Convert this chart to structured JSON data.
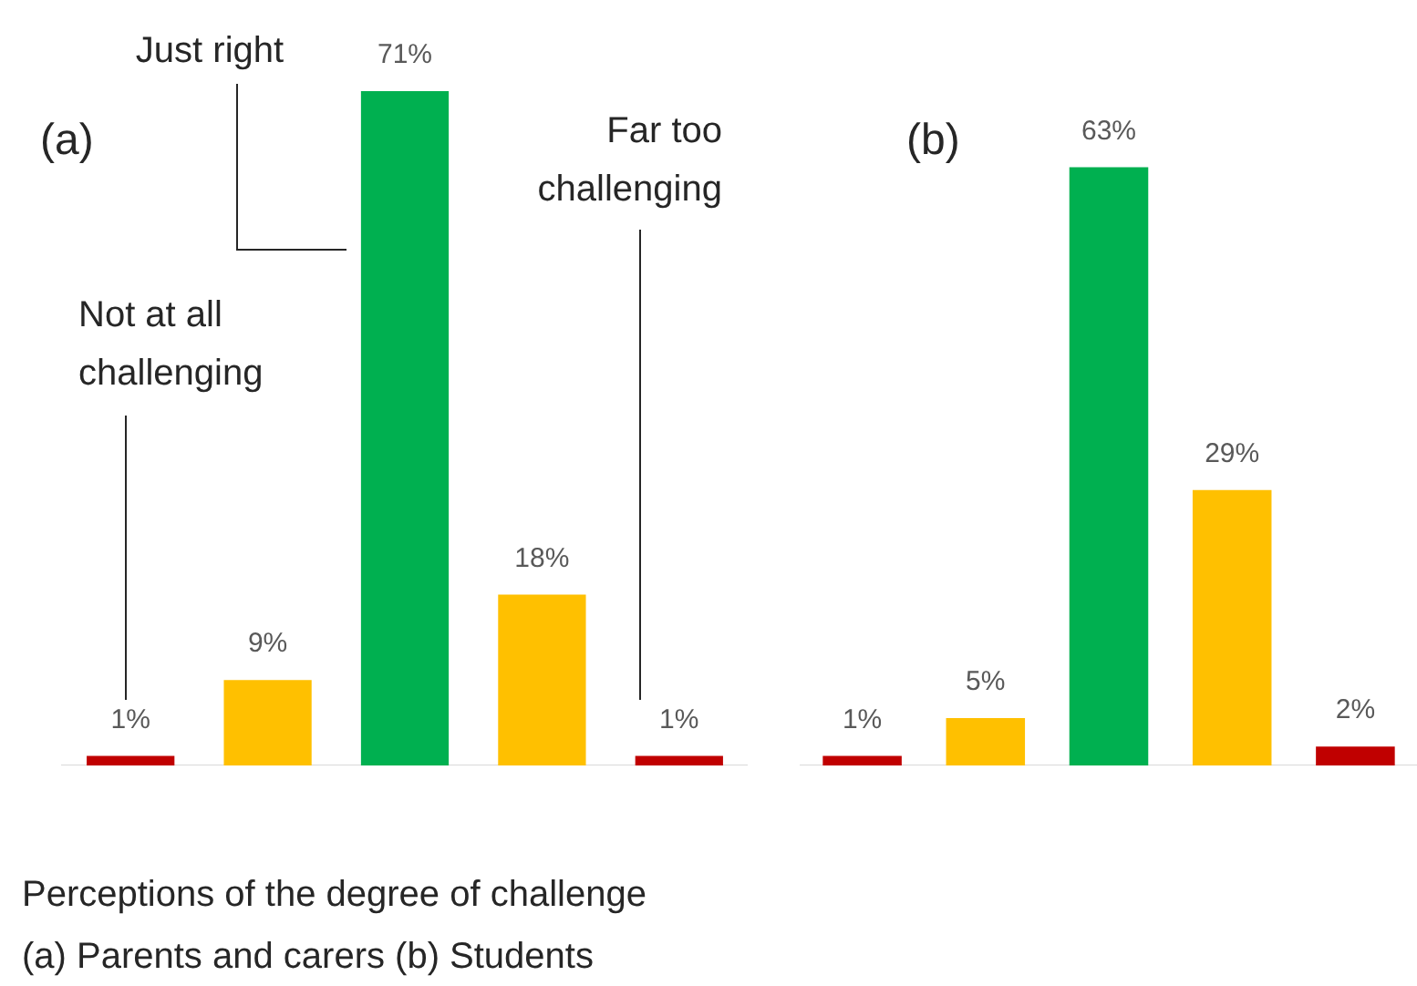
{
  "chart_data": [
    {
      "type": "bar",
      "title": "(a)",
      "categories": [
        null,
        null,
        null,
        null,
        null
      ],
      "values": [
        1,
        9,
        71,
        18,
        1
      ],
      "colors": [
        "#c00000",
        "#ffc000",
        "#00b050",
        "#ffc000",
        "#c00000"
      ],
      "value_labels": [
        "1%",
        "9%",
        "71%",
        "18%",
        "1%"
      ],
      "annotations": [
        "Just right",
        "Not at all challenging",
        "Far too challenging",
        "Perceptions of the degree of challenge",
        "(a) Parents and carers (b) Students"
      ]
    },
    {
      "type": "bar",
      "title": "(b)",
      "categories": [
        null,
        null,
        null,
        null,
        null
      ],
      "values": [
        1,
        5,
        63,
        29,
        2
      ],
      "colors": [
        "#c00000",
        "#ffc000",
        "#00b050",
        "#ffc000",
        "#c00000"
      ],
      "value_labels": [
        "1%",
        "5%",
        "63%",
        "29%",
        "2%"
      ]
    }
  ]
}
